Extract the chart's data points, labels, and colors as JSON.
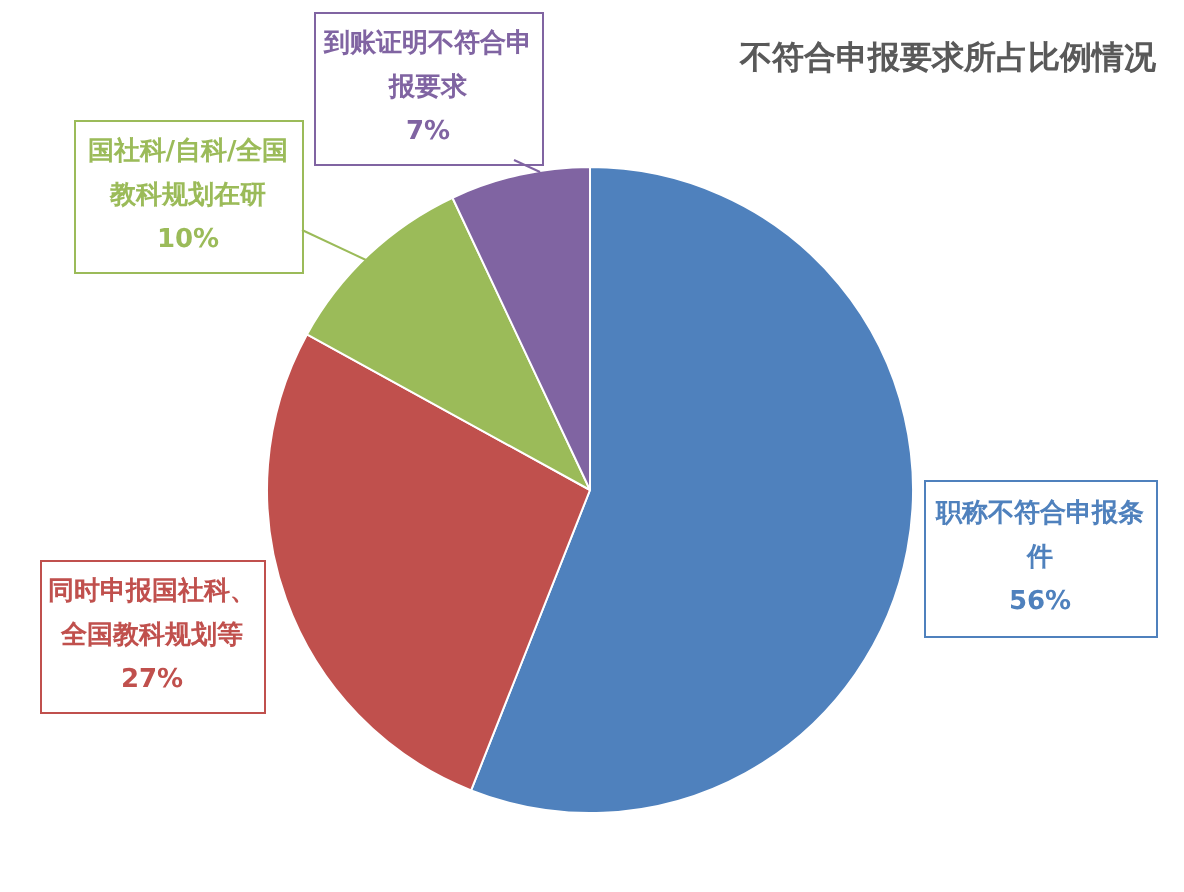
{
  "chart_data": {
    "type": "pie",
    "title": "不符合申报要求所占比例情况",
    "categories": [
      "职称不符合申报条件",
      "同时申报国社科、全国教科规划等",
      "国社科/自科/全国教科规划在研",
      "到账证明不符合申报要求"
    ],
    "values": [
      56,
      27,
      10,
      7
    ],
    "colors": [
      "#4f81bd",
      "#c0504d",
      "#9bbb59",
      "#8064a2"
    ],
    "value_labels": [
      "56%",
      "27%",
      "10%",
      "7%"
    ],
    "legend": false
  }
}
